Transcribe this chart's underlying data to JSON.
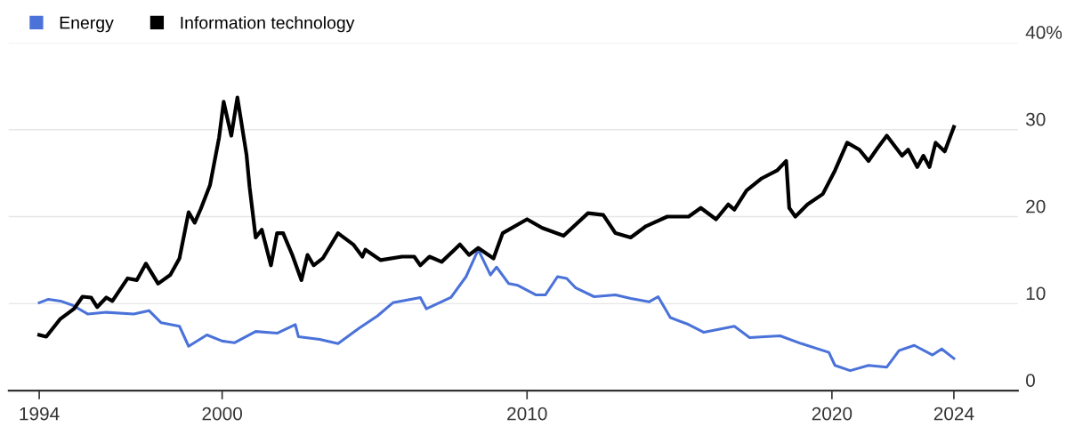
{
  "chart_data": {
    "type": "line",
    "series": [
      {
        "name": "Energy",
        "color": "#4a72d9",
        "x": [
          1994.0,
          1994.3,
          1994.7,
          1995.1,
          1995.6,
          1996.2,
          1997.1,
          1997.6,
          1998.0,
          1998.6,
          1998.9,
          1999.5,
          2000.0,
          2000.4,
          2001.1,
          2001.8,
          2002.4,
          2002.5,
          2003.2,
          2003.8,
          2004.5,
          2005.1,
          2005.6,
          2006.5,
          2006.7,
          2007.5,
          2008.0,
          2008.4,
          2008.8,
          2009.0,
          2009.4,
          2009.7,
          2010.3,
          2010.6,
          2011.0,
          2011.3,
          2011.6,
          2012.2,
          2012.9,
          2013.4,
          2014.0,
          2014.3,
          2014.7,
          2015.3,
          2015.8,
          2016.8,
          2017.3,
          2018.3,
          2019.0,
          2019.9,
          2020.1,
          2020.6,
          2021.2,
          2021.8,
          2022.2,
          2022.7,
          2023.3,
          2023.6,
          2024.0
        ],
        "values": [
          10.1,
          10.5,
          10.3,
          9.8,
          8.8,
          9.0,
          8.8,
          9.2,
          7.8,
          7.4,
          5.1,
          6.4,
          5.7,
          5.5,
          6.8,
          6.6,
          7.6,
          6.2,
          5.9,
          5.4,
          7.2,
          8.6,
          10.1,
          10.7,
          9.4,
          10.7,
          13.1,
          16.2,
          13.3,
          14.2,
          12.3,
          12.1,
          11.0,
          11.0,
          13.1,
          12.9,
          11.8,
          10.8,
          11.0,
          10.6,
          10.2,
          10.8,
          8.4,
          7.6,
          6.7,
          7.4,
          6.1,
          6.3,
          5.4,
          4.4,
          2.9,
          2.3,
          2.9,
          2.7,
          4.6,
          5.2,
          4.1,
          4.8,
          3.7
        ]
      },
      {
        "name": "Information technology",
        "color": "#000000",
        "x": [
          1994.0,
          1994.23,
          1994.68,
          1995.14,
          1995.42,
          1995.7,
          1995.9,
          1996.2,
          1996.4,
          1996.9,
          1997.2,
          1997.5,
          1997.9,
          1998.3,
          1998.6,
          1998.9,
          1999.1,
          1999.3,
          1999.6,
          1999.9,
          2000.05,
          2000.3,
          2000.5,
          2000.8,
          2000.9,
          2001.1,
          2001.3,
          2001.6,
          2001.8,
          2002.0,
          2002.3,
          2002.6,
          2002.8,
          2003.0,
          2003.3,
          2003.8,
          2004.3,
          2004.6,
          2004.7,
          2005.2,
          2005.9,
          2006.3,
          2006.5,
          2006.8,
          2007.2,
          2007.8,
          2008.1,
          2008.4,
          2008.9,
          2009.2,
          2010.0,
          2010.5,
          2011.2,
          2012.0,
          2012.5,
          2012.9,
          2013.4,
          2013.9,
          2014.6,
          2015.3,
          2015.7,
          2016.2,
          2016.6,
          2016.8,
          2017.2,
          2017.7,
          2018.2,
          2018.5,
          2018.6,
          2018.8,
          2019.2,
          2019.7,
          2020.1,
          2020.5,
          2020.9,
          2021.2,
          2021.5,
          2021.8,
          2022.3,
          2022.5,
          2022.8,
          2023.0,
          2023.2,
          2023.4,
          2023.7,
          2024.0
        ],
        "values": [
          6.4,
          6.2,
          8.2,
          9.4,
          10.8,
          10.7,
          9.6,
          10.7,
          10.3,
          12.9,
          12.7,
          14.6,
          12.3,
          13.3,
          15.2,
          20.5,
          19.3,
          20.9,
          23.6,
          29.1,
          33.2,
          29.3,
          33.7,
          27.1,
          23.4,
          17.6,
          18.5,
          14.4,
          18.1,
          18.1,
          15.6,
          12.7,
          15.6,
          14.4,
          15.2,
          18.1,
          16.8,
          15.4,
          16.2,
          15.0,
          15.4,
          15.4,
          14.4,
          15.4,
          14.8,
          16.8,
          15.6,
          16.4,
          15.2,
          18.1,
          19.7,
          18.7,
          17.8,
          20.4,
          20.2,
          18.1,
          17.6,
          18.9,
          20.0,
          20.0,
          21.0,
          19.7,
          21.4,
          20.8,
          23.0,
          24.4,
          25.3,
          26.4,
          21.0,
          20.0,
          21.4,
          22.6,
          25.3,
          28.5,
          27.7,
          26.4,
          27.9,
          29.3,
          27.0,
          27.7,
          25.7,
          27.0,
          25.7,
          28.5,
          27.5,
          30.3
        ]
      }
    ],
    "xlim": [
      1993,
      2026.1
    ],
    "xticks": [
      1994,
      2000,
      2010,
      2020,
      2024
    ],
    "ylim": [
      0,
      40
    ],
    "yticks": [
      0,
      10,
      20,
      30,
      {
        "value": 40,
        "label": "40%"
      }
    ],
    "grid": "y",
    "legend": "top left",
    "marker": "none",
    "line_style": "solid"
  }
}
